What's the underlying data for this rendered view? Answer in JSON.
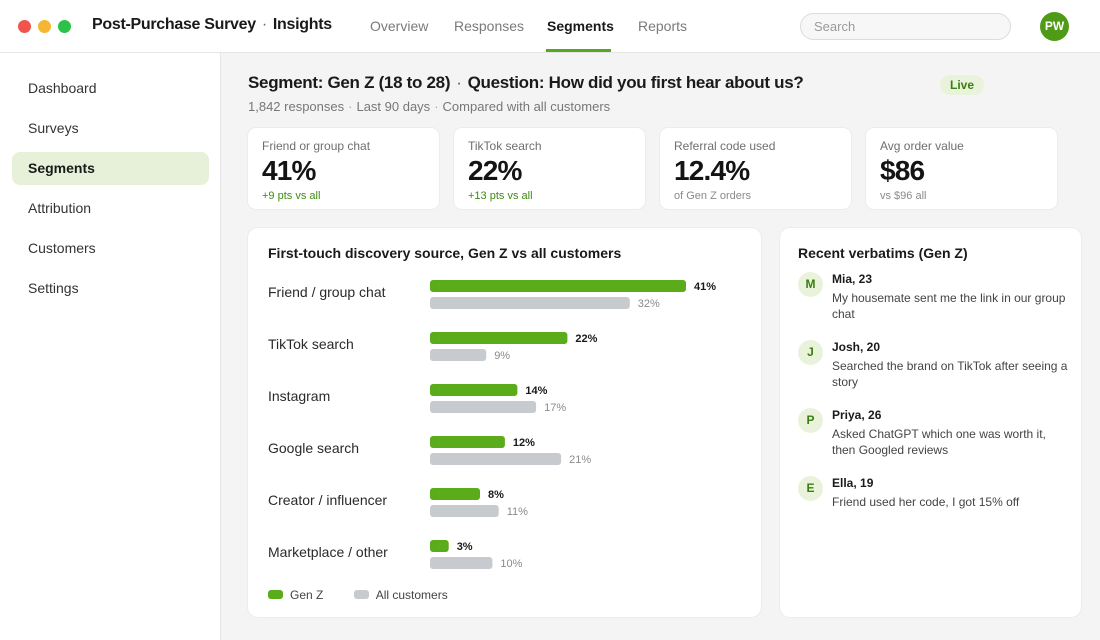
{
  "window": {
    "colors": {
      "close": "#f0544c",
      "minimize": "#f5b731",
      "zoom": "#2cc24a"
    }
  },
  "header": {
    "app_name": "Post-Purchase Survey",
    "separator": "·",
    "section": "Insights",
    "tabs": [
      {
        "label": "Overview",
        "active": false
      },
      {
        "label": "Responses",
        "active": false
      },
      {
        "label": "Segments",
        "active": true
      },
      {
        "label": "Reports",
        "active": false
      }
    ],
    "search_placeholder": "Search",
    "user_initials": "PW",
    "accent_color": "#58a81c"
  },
  "sidebar": {
    "items": [
      {
        "label": "Dashboard",
        "active": false
      },
      {
        "label": "Surveys",
        "active": false
      },
      {
        "label": "Segments",
        "active": true
      },
      {
        "label": "Attribution",
        "active": false
      },
      {
        "label": "Customers",
        "active": false
      },
      {
        "label": "Settings",
        "active": false
      }
    ]
  },
  "segment": {
    "title_segment": "Segment: Gen Z (18 to 28)",
    "separator": "·",
    "title_question": "Question: How did you first hear about us?",
    "status": "Live",
    "meta": {
      "responses": "1,842 responses",
      "period": "Last 90 days",
      "comparison": "Compared with all customers",
      "separator": "·"
    }
  },
  "kpis": [
    {
      "label": "Friend or group chat",
      "value": "41%",
      "sub": "+9 pts vs all",
      "positive": true
    },
    {
      "label": "TikTok search",
      "value": "22%",
      "sub": "+13 pts vs all",
      "positive": true
    },
    {
      "label": "Referral code used",
      "value": "12.4%",
      "sub": "of Gen Z orders",
      "positive": false
    },
    {
      "label": "Avg order value",
      "value": "$86",
      "sub": "vs $96 all",
      "positive": false
    }
  ],
  "chart": {
    "title": "First-touch discovery source, Gen Z vs all customers",
    "legend": [
      {
        "name": "Gen Z",
        "color": "#5aac1a"
      },
      {
        "name": "All customers",
        "color": "#c7cbd0"
      }
    ]
  },
  "chart_data": {
    "type": "bar",
    "orientation": "horizontal",
    "title": "First-touch discovery source, Gen Z vs all customers",
    "categories": [
      "Friend / group chat",
      "TikTok search",
      "Instagram",
      "Google search",
      "Creator / influencer",
      "Marketplace / other"
    ],
    "series": [
      {
        "name": "Gen Z",
        "values": [
          41,
          22,
          14,
          12,
          8,
          3
        ],
        "labels": [
          "41%",
          "22%",
          "14%",
          "12%",
          "8%",
          "3%"
        ],
        "color": "#5aac1a"
      },
      {
        "name": "All customers",
        "values": [
          32,
          9,
          17,
          21,
          11,
          10
        ],
        "labels": [
          "32%",
          "9%",
          "17%",
          "21%",
          "11%",
          "10%"
        ],
        "color": "#c7cbd0"
      }
    ],
    "xlim": [
      0,
      41
    ],
    "unit": "%",
    "grid": false,
    "legend_position": "bottom-left"
  },
  "verbatims": {
    "title": "Recent verbatims (Gen Z)",
    "items": [
      {
        "initial": "M",
        "name": "Mia, 23",
        "text": "My housemate sent me the link in our group chat"
      },
      {
        "initial": "J",
        "name": "Josh, 20",
        "text": "Searched the brand on TikTok after seeing a story"
      },
      {
        "initial": "P",
        "name": "Priya, 26",
        "text": "Asked ChatGPT which one was worth it, then Googled reviews"
      },
      {
        "initial": "E",
        "name": "Ella, 19",
        "text": "Friend used her code, I got 15% off"
      }
    ]
  }
}
